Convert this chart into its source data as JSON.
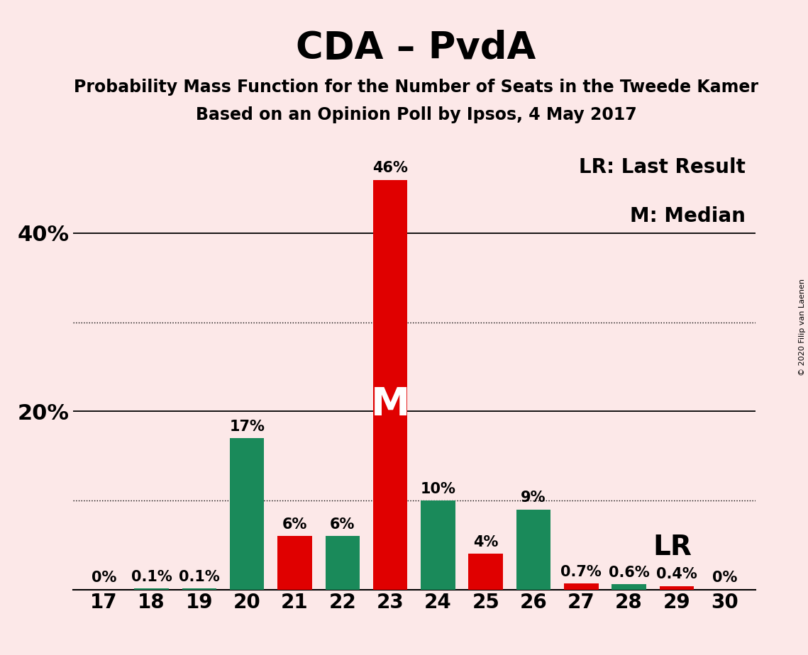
{
  "title": "CDA – PvdA",
  "subtitle1": "Probability Mass Function for the Number of Seats in the Tweede Kamer",
  "subtitle2": "Based on an Opinion Poll by Ipsos, 4 May 2017",
  "copyright": "© 2020 Filip van Laenen",
  "legend_text1": "LR: Last Result",
  "legend_text2": "M: Median",
  "median_label": "M",
  "lr_label": "LR",
  "lr_seat": 27,
  "median_seat": 23,
  "categories": [
    17,
    18,
    19,
    20,
    21,
    22,
    23,
    24,
    25,
    26,
    27,
    28,
    29,
    30
  ],
  "values": [
    0.0,
    0.1,
    0.1,
    17.0,
    6.0,
    6.0,
    46.0,
    10.0,
    4.0,
    9.0,
    0.7,
    0.6,
    0.4,
    0.0
  ],
  "labels": [
    "0%",
    "0.1%",
    "0.1%",
    "17%",
    "6%",
    "6%",
    "46%",
    "10%",
    "4%",
    "9%",
    "0.7%",
    "0.6%",
    "0.4%",
    "0%"
  ],
  "colors": [
    "#1a8a5a",
    "#1a8a5a",
    "#1a8a5a",
    "#1a8a5a",
    "#e00000",
    "#1a8a5a",
    "#e00000",
    "#1a8a5a",
    "#e00000",
    "#1a8a5a",
    "#e00000",
    "#1a8a5a",
    "#e00000",
    "#1a8a5a"
  ],
  "background_color": "#fce8e8",
  "ylim": [
    0,
    50
  ],
  "solid_yticks": [
    20,
    40
  ],
  "dotted_yticks": [
    10,
    30
  ],
  "title_fontsize": 38,
  "subtitle_fontsize": 17,
  "label_fontsize": 15,
  "tick_fontsize": 20,
  "legend_fontsize": 20,
  "median_label_fontsize": 40,
  "lr_label_fontsize": 28,
  "ytick_label_fontsize": 22
}
